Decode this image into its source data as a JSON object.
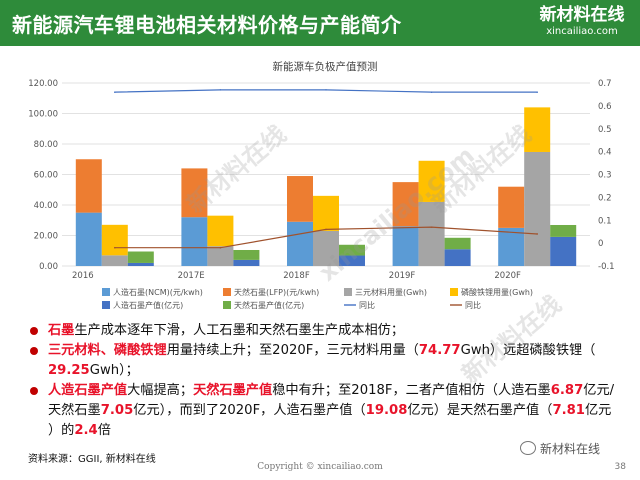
{
  "header": {
    "title": "新能源汽车锂电池相关材料价格与产能简介"
  },
  "logo": {
    "name_cn": "新材料在线",
    "name_en": "xincailiao.com"
  },
  "watermark": {
    "text": "新材料在线",
    "url": "xincailiao.com"
  },
  "chart_data": {
    "type": "bar",
    "title": "新能源车负极产值预测",
    "categories": [
      "2016",
      "2017E",
      "2018F",
      "2019F",
      "2020F"
    ],
    "ylim": [
      0,
      120
    ],
    "y_ticks": [
      "0.00",
      "20.00",
      "40.00",
      "60.00",
      "80.00",
      "100.00",
      "120.00"
    ],
    "y2lim": [
      -0.1,
      0.7
    ],
    "y2_ticks": [
      "-0.1",
      "0",
      "0.1",
      "0.2",
      "0.3",
      "0.4",
      "0.5",
      "0.6",
      "0.7"
    ],
    "legend_position": "bottom",
    "series": [
      {
        "name": "人造石墨(NCM)(元/kwh)",
        "type": "stacked-bar",
        "stack": "a",
        "color": "#5b9bd5",
        "values": [
          35,
          32,
          29,
          26,
          25
        ]
      },
      {
        "name": "天然石墨(LFP)(元/kwh)",
        "type": "stacked-bar",
        "stack": "a",
        "color": "#ed7d31",
        "values": [
          35,
          32,
          30,
          29,
          27
        ]
      },
      {
        "name": "三元材料用量(Gwh)",
        "type": "stacked-bar",
        "stack": "b",
        "color": "#a5a5a5",
        "values": [
          7,
          13,
          23,
          42,
          74.77
        ]
      },
      {
        "name": "磷酸铁锂用量(Gwh)",
        "type": "stacked-bar",
        "stack": "b",
        "color": "#ffc000",
        "values": [
          20,
          20,
          23,
          27,
          29.25
        ]
      },
      {
        "name": "人造石墨产值(亿元)",
        "type": "stacked-bar",
        "stack": "c",
        "color": "#4472c4",
        "values": [
          2,
          4,
          6.87,
          11,
          19.08
        ]
      },
      {
        "name": "天然石墨产值(亿元)",
        "type": "stacked-bar",
        "stack": "c",
        "color": "#70ad47",
        "values": [
          7.5,
          6.5,
          7.05,
          7.5,
          7.81
        ]
      },
      {
        "name": "同比",
        "type": "line",
        "axis": "right",
        "color": "#4472c4",
        "values": [
          0.66,
          0.67,
          0.67,
          0.66,
          0.66
        ]
      },
      {
        "name": "同比",
        "type": "line",
        "axis": "right",
        "color": "#a0522d",
        "values": [
          -0.02,
          -0.02,
          0.06,
          0.07,
          0.04
        ]
      }
    ]
  },
  "bullets": [
    {
      "parts": [
        {
          "t": "石墨",
          "s": "red"
        },
        {
          "t": "生产成本逐年下滑，人工石墨和天然石墨生产成本相仿；",
          "s": ""
        }
      ]
    },
    {
      "parts": [
        {
          "t": "三元材料、磷酸铁锂",
          "s": "red"
        },
        {
          "t": "用量持续上升；至2020F，三元材料用量（",
          "s": ""
        },
        {
          "t": "74.77",
          "s": "red"
        },
        {
          "t": "Gwh）远超磷酸铁锂（",
          "s": ""
        }
      ],
      "cont": [
        {
          "t": "29.25",
          "s": "red"
        },
        {
          "t": "Gwh）；",
          "s": ""
        }
      ]
    },
    {
      "parts": [
        {
          "t": "人造石墨产值",
          "s": "red"
        },
        {
          "t": "大幅提高；",
          "s": ""
        },
        {
          "t": "天然石墨产值",
          "s": "red"
        },
        {
          "t": "稳中有升；至2018F，二者产值相仿（人造石墨",
          "s": ""
        },
        {
          "t": "6.87",
          "s": "red"
        },
        {
          "t": "亿元/",
          "s": ""
        }
      ],
      "cont": [
        {
          "t": "天然石墨",
          "s": ""
        },
        {
          "t": "7.05",
          "s": "red"
        },
        {
          "t": "亿元），而到了2020F，人造石墨产值（",
          "s": ""
        },
        {
          "t": "19.08",
          "s": "red"
        },
        {
          "t": "亿元）是天然石墨产值（",
          "s": ""
        },
        {
          "t": "7.81",
          "s": "red"
        },
        {
          "t": "亿元",
          "s": ""
        }
      ],
      "cont2": [
        {
          "t": "）的",
          "s": ""
        },
        {
          "t": "2.4",
          "s": "red"
        },
        {
          "t": "倍",
          "s": ""
        }
      ]
    }
  ],
  "footer": {
    "source": "资料来源：GGII, 新材料在线",
    "copyright": "Copyright © xincailiao.com",
    "page": "38",
    "wechat": "新材料在线"
  }
}
